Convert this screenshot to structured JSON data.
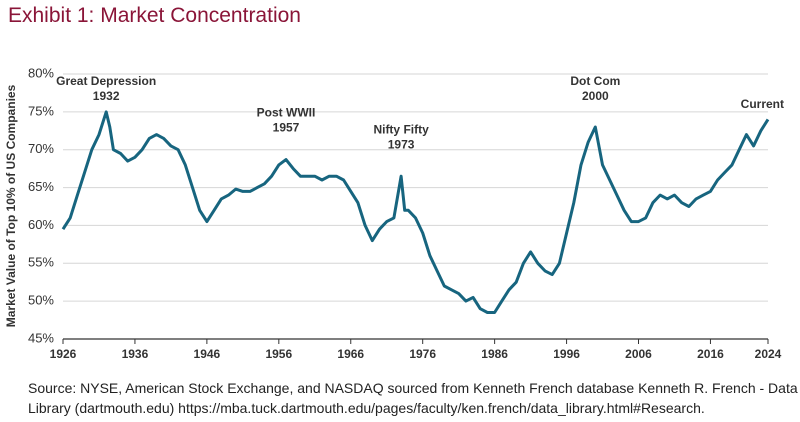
{
  "chart_data": {
    "type": "line",
    "title": "Exhibit 1: Market Concentration",
    "ylabel": "Market Value of Top 10% of US Companies",
    "source": "Source: NYSE, American Stock Exchange, and NASDAQ sourced from Kenneth French database Kenneth R. French - Data Library (dartmouth.edu) https://mba.tuck.dartmouth.edu/pages/faculty/ken.french/data_library.html#Research.",
    "x": [
      1926,
      1927,
      1928,
      1929,
      1930,
      1931,
      1932,
      1932.5,
      1933,
      1934,
      1935,
      1936,
      1937,
      1938,
      1939,
      1940,
      1941,
      1942,
      1943,
      1944,
      1945,
      1946,
      1947,
      1948,
      1949,
      1950,
      1951,
      1952,
      1953,
      1954,
      1955,
      1956,
      1957,
      1958,
      1959,
      1960,
      1961,
      1962,
      1963,
      1964,
      1965,
      1966,
      1967,
      1968,
      1969,
      1970,
      1971,
      1972,
      1973,
      1973.5,
      1974,
      1975,
      1976,
      1977,
      1978,
      1979,
      1980,
      1981,
      1982,
      1983,
      1984,
      1985,
      1986,
      1987,
      1988,
      1989,
      1990,
      1991,
      1992,
      1993,
      1994,
      1995,
      1996,
      1997,
      1998,
      1999,
      2000,
      2001,
      2002,
      2003,
      2004,
      2005,
      2006,
      2007,
      2008,
      2009,
      2010,
      2011,
      2012,
      2013,
      2014,
      2015,
      2016,
      2017,
      2018,
      2019,
      2020,
      2021,
      2022,
      2023,
      2024
    ],
    "series": [
      {
        "name": "Market Value of Top 10% of US Companies",
        "color": "#17657f",
        "values": [
          59.5,
          61,
          64,
          67,
          70,
          72,
          75,
          73,
          70,
          69.5,
          68.5,
          69,
          70,
          71.5,
          72,
          71.5,
          70.5,
          70,
          68,
          65,
          62,
          60.5,
          62,
          63.5,
          64,
          64.8,
          64.5,
          64.5,
          65,
          65.5,
          66.5,
          68,
          68.7,
          67.5,
          66.5,
          66.5,
          66.5,
          66,
          66.5,
          66.5,
          66,
          64.5,
          63,
          60,
          58,
          59.5,
          60.5,
          61,
          66.5,
          62,
          62,
          61,
          59,
          56,
          54,
          52,
          51.5,
          51,
          50,
          50.5,
          49,
          48.5,
          48.5,
          50,
          51.5,
          52.5,
          55,
          56.5,
          55,
          54,
          53.5,
          55,
          59,
          63,
          68,
          71,
          73,
          68,
          66,
          64,
          62,
          60.5,
          60.5,
          61,
          63,
          64,
          63.5,
          64,
          63,
          62.5,
          63.5,
          64,
          64.5,
          66,
          67,
          68,
          70,
          72,
          70.5,
          72.5,
          74
        ]
      }
    ],
    "xlim": [
      1926,
      2024
    ],
    "xticks": [
      1926,
      1936,
      1946,
      1956,
      1966,
      1976,
      1986,
      1996,
      2006,
      2016,
      2024
    ],
    "ylim": [
      45,
      80
    ],
    "yticks": [
      {
        "value": 45,
        "label": "45%"
      },
      {
        "value": 50,
        "label": "50%"
      },
      {
        "value": 55,
        "label": "55%"
      },
      {
        "value": 60,
        "label": "60%"
      },
      {
        "value": 65,
        "label": "65%"
      },
      {
        "value": 70,
        "label": "70%"
      },
      {
        "value": 75,
        "label": "75%"
      },
      {
        "value": 80,
        "label": "80%"
      }
    ],
    "grid": true,
    "annotations": [
      {
        "text": "Great Depression",
        "x": 1932
      },
      {
        "text": "Post WWII",
        "x": 1957
      },
      {
        "text": "Nifty Fifty",
        "x": 1973
      },
      {
        "text": "Dot Com",
        "x": 2000
      },
      {
        "text": "Current"
      }
    ]
  }
}
